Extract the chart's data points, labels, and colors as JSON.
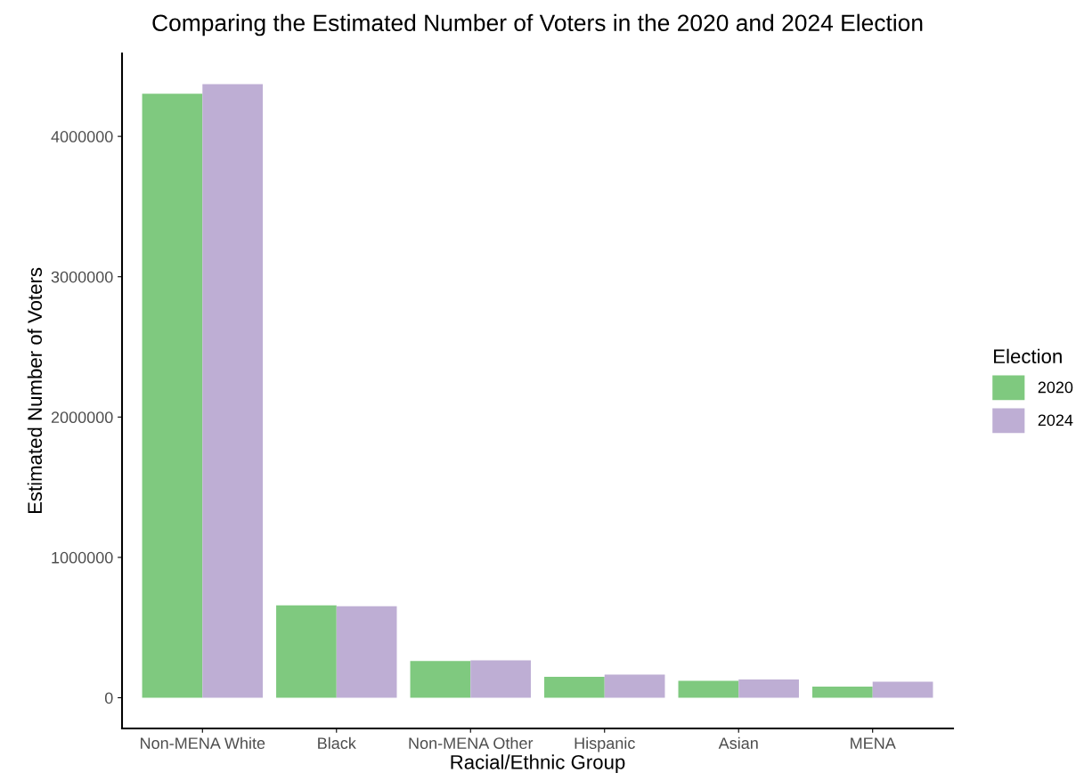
{
  "chart_data": {
    "type": "bar",
    "title": "Comparing the Estimated Number of Voters in the 2020 and 2024 Election",
    "xlabel": "Racial/Ethnic Group",
    "ylabel": "Estimated Number of Voters",
    "legend_title": "Election",
    "categories": [
      "Non-MENA White",
      "Black",
      "Non-MENA Other",
      "Hispanic",
      "Asian",
      "MENA"
    ],
    "series": [
      {
        "name": "2020",
        "color": "#7fc97f",
        "values": [
          4304000,
          658000,
          261000,
          149000,
          121000,
          79000
        ]
      },
      {
        "name": "2024",
        "color": "#beaed4",
        "values": [
          4372000,
          652000,
          267000,
          165000,
          130000,
          114000
        ]
      }
    ],
    "ylim": [
      -219000,
      4591000
    ],
    "yticks": [
      0,
      1000000,
      2000000,
      3000000,
      4000000
    ],
    "grid": false,
    "legend": "right"
  }
}
